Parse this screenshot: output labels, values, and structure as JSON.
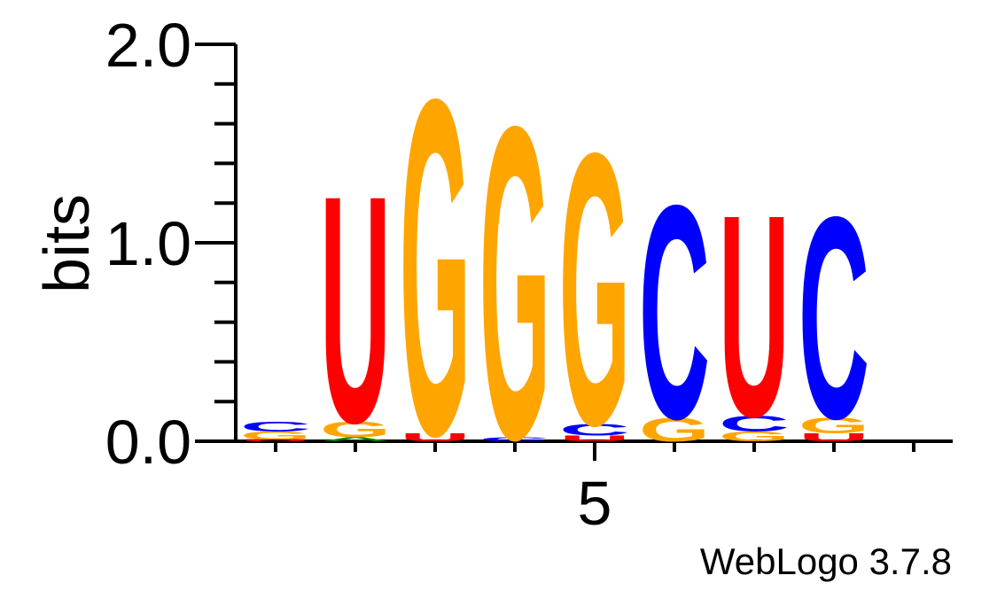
{
  "chart_data": {
    "type": "sequence_logo",
    "ylabel": "bits",
    "ylim": [
      0,
      2
    ],
    "y_ticks": [
      "0.0",
      "1.0",
      "2.0"
    ],
    "x_ticks": [
      {
        "position": 5,
        "label": "5"
      }
    ],
    "num_positions": 9,
    "footer": "WebLogo 3.7.8",
    "colors": {
      "C": "#0000ff",
      "G": "#ffa500",
      "U": "#ff0000",
      "A": "#008000"
    },
    "positions": [
      {
        "index": 1,
        "stack": [
          {
            "letter": "U",
            "bits": 0.01
          },
          {
            "letter": "G",
            "bits": 0.04
          },
          {
            "letter": "C",
            "bits": 0.05
          }
        ]
      },
      {
        "index": 2,
        "stack": [
          {
            "letter": "A",
            "bits": 0.02
          },
          {
            "letter": "G",
            "bits": 0.08
          },
          {
            "letter": "U",
            "bits": 1.17
          }
        ]
      },
      {
        "index": 3,
        "stack": [
          {
            "letter": "U",
            "bits": 0.04
          },
          {
            "letter": "G",
            "bits": 1.73
          }
        ]
      },
      {
        "index": 4,
        "stack": [
          {
            "letter": "C",
            "bits": 0.02
          },
          {
            "letter": "G",
            "bits": 1.61
          }
        ]
      },
      {
        "index": 5,
        "stack": [
          {
            "letter": "U",
            "bits": 0.03
          },
          {
            "letter": "C",
            "bits": 0.06
          },
          {
            "letter": "G",
            "bits": 1.4
          }
        ]
      },
      {
        "index": 6,
        "stack": [
          {
            "letter": "G",
            "bits": 0.12
          },
          {
            "letter": "C",
            "bits": 1.1
          }
        ]
      },
      {
        "index": 7,
        "stack": [
          {
            "letter": "G",
            "bits": 0.05
          },
          {
            "letter": "C",
            "bits": 0.08
          },
          {
            "letter": "U",
            "bits": 1.04
          }
        ]
      },
      {
        "index": 8,
        "stack": [
          {
            "letter": "U",
            "bits": 0.04
          },
          {
            "letter": "G",
            "bits": 0.08
          },
          {
            "letter": "C",
            "bits": 1.04
          }
        ]
      },
      {
        "index": 9,
        "stack": []
      }
    ]
  }
}
